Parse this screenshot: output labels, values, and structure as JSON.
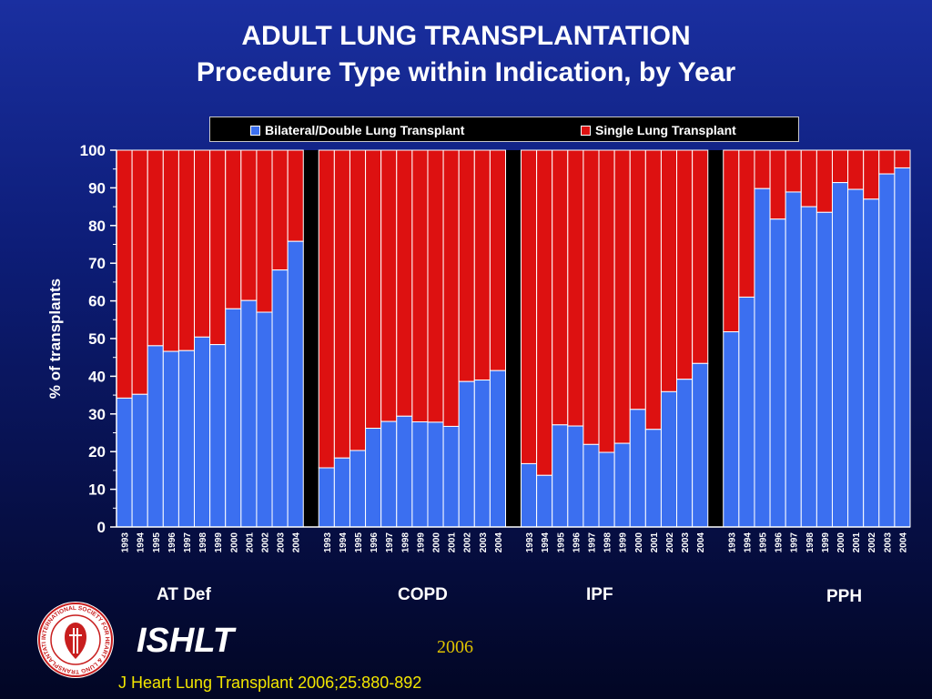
{
  "title_line1": "ADULT LUNG TRANSPLANTATION",
  "title_line2": "Procedure Type within Indication, by Year",
  "brand": "ISHLT",
  "logo_text": "INTERNATIONAL SOCIETY FOR HEART & LUNG TRANSPLANTATION",
  "year_note": "2006",
  "citation": "J Heart Lung Transplant 2006;25:880-892",
  "colors": {
    "bilateral": "#3b6ff0",
    "single": "#dd1111",
    "background": "#0d1d78",
    "citation": "#f2e600"
  },
  "chart_data": {
    "type": "bar",
    "stacked": true,
    "percent": true,
    "ylabel": "% of transplants",
    "ylim": [
      0,
      100
    ],
    "yticks": [
      0,
      10,
      20,
      30,
      40,
      50,
      60,
      70,
      80,
      90,
      100
    ],
    "legend": {
      "position": "top",
      "entries": [
        "Bilateral/Double Lung Transplant",
        "Single Lung Transplant"
      ]
    },
    "categories": [
      "1993",
      "1994",
      "1995",
      "1996",
      "1997",
      "1998",
      "1999",
      "2000",
      "2001",
      "2002",
      "2003",
      "2004"
    ],
    "groups": [
      {
        "name": "AT Def",
        "series": [
          {
            "name": "Bilateral/Double Lung Transplant",
            "values": [
              34.2,
              35.2,
              48.1,
              46.6,
              46.8,
              50.4,
              48.4,
              57.9,
              60.1,
              57.0,
              68.2,
              75.8
            ]
          },
          {
            "name": "Single Lung Transplant",
            "values": [
              65.8,
              64.8,
              51.9,
              53.4,
              53.2,
              49.6,
              51.6,
              42.1,
              39.9,
              43.0,
              31.8,
              24.2
            ]
          }
        ]
      },
      {
        "name": "COPD",
        "series": [
          {
            "name": "Bilateral/Double Lung Transplant",
            "values": [
              15.7,
              18.3,
              20.3,
              26.2,
              28.0,
              29.4,
              27.9,
              27.8,
              26.7,
              38.6,
              39.0,
              41.5
            ]
          },
          {
            "name": "Single Lung Transplant",
            "values": [
              84.3,
              81.7,
              79.7,
              73.8,
              72.0,
              70.6,
              72.1,
              72.2,
              73.3,
              61.4,
              61.0,
              58.5
            ]
          }
        ]
      },
      {
        "name": "IPF",
        "series": [
          {
            "name": "Bilateral/Double Lung Transplant",
            "values": [
              16.8,
              13.7,
              27.1,
              26.8,
              21.9,
              19.8,
              22.2,
              31.2,
              25.9,
              35.9,
              39.2,
              43.4
            ]
          },
          {
            "name": "Single Lung Transplant",
            "values": [
              83.2,
              86.3,
              72.9,
              73.2,
              78.1,
              80.2,
              77.8,
              68.8,
              74.1,
              64.1,
              60.8,
              56.6
            ]
          }
        ]
      },
      {
        "name": "PPH",
        "series": [
          {
            "name": "Bilateral/Double Lung Transplant",
            "values": [
              51.8,
              61.0,
              89.8,
              81.7,
              88.9,
              85.0,
              83.5,
              91.4,
              89.6,
              87.0,
              93.7,
              95.3
            ]
          },
          {
            "name": "Single Lung Transplant",
            "values": [
              48.2,
              39.0,
              10.2,
              18.3,
              11.1,
              15.0,
              16.5,
              8.6,
              10.4,
              13.0,
              6.3,
              4.7
            ]
          }
        ]
      }
    ]
  }
}
